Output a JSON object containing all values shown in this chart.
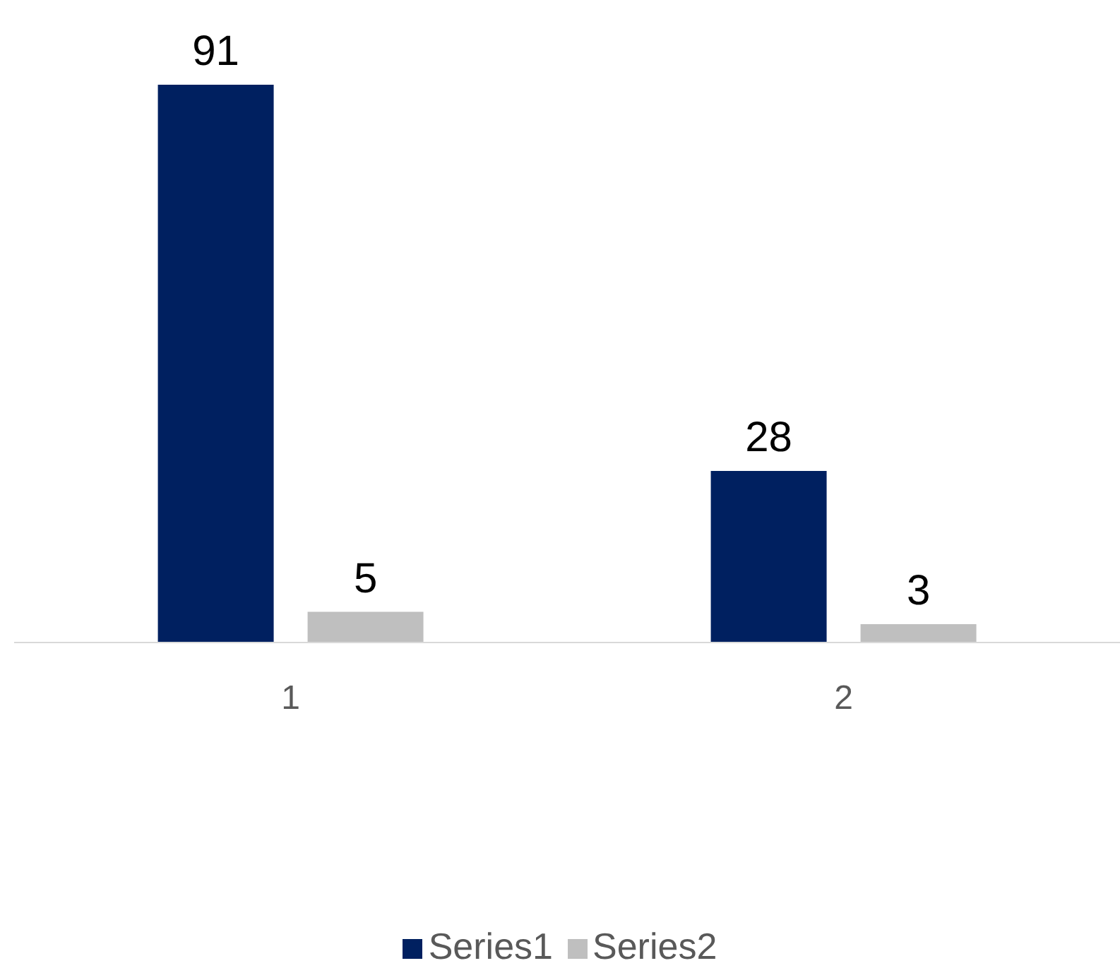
{
  "chart_data": {
    "type": "bar",
    "categories": [
      "1",
      "2"
    ],
    "series": [
      {
        "name": "Series1",
        "color": "#002060",
        "values": [
          91,
          28
        ]
      },
      {
        "name": "Series2",
        "color": "#bfbfbf",
        "values": [
          5,
          3
        ]
      }
    ],
    "data_labels": true,
    "legend": "bottom",
    "grid": false
  }
}
